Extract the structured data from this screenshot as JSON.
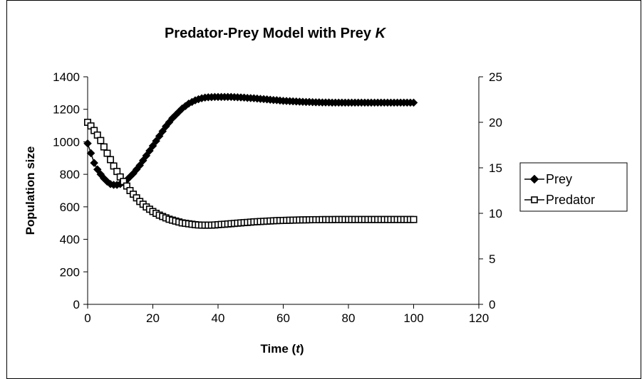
{
  "chart_data": {
    "type": "line",
    "title_main": "Predator-Prey Model with Prey ",
    "title_italic": "K",
    "xlabel_main": "Time (",
    "xlabel_italic": "t",
    "xlabel_end": ")",
    "ylabel": "Population size",
    "xlim": [
      0,
      120
    ],
    "ylim": [
      0,
      1400
    ],
    "y2lim": [
      0,
      25
    ],
    "xticks": [
      0,
      20,
      40,
      60,
      80,
      100,
      120
    ],
    "yticks": [
      0,
      200,
      400,
      600,
      800,
      1000,
      1200,
      1400
    ],
    "y2ticks": [
      0,
      5,
      10,
      15,
      20,
      25
    ],
    "legend_position": "right",
    "grid": false,
    "series": [
      {
        "name": "Prey",
        "axis": "left",
        "marker": "diamond",
        "x": [
          0,
          1,
          2,
          3,
          4,
          5,
          6,
          7,
          8,
          9,
          10,
          11,
          12,
          13,
          14,
          15,
          16,
          17,
          18,
          19,
          20,
          21,
          22,
          23,
          24,
          25,
          26,
          27,
          28,
          29,
          30,
          31,
          32,
          33,
          34,
          35,
          36,
          37,
          38,
          39,
          40,
          41,
          42,
          43,
          44,
          45,
          46,
          47,
          48,
          49,
          50,
          51,
          52,
          53,
          54,
          55,
          56,
          57,
          58,
          59,
          60,
          61,
          62,
          63,
          64,
          65,
          66,
          67,
          68,
          69,
          70,
          71,
          72,
          73,
          74,
          75,
          76,
          77,
          78,
          79,
          80,
          81,
          82,
          83,
          84,
          85,
          86,
          87,
          88,
          89,
          90,
          91,
          92,
          93,
          94,
          95,
          96,
          97,
          98,
          99,
          100
        ],
        "values": [
          990,
          930,
          870,
          830,
          800,
          775,
          755,
          740,
          735,
          735,
          740,
          750,
          765,
          785,
          805,
          830,
          855,
          885,
          915,
          945,
          975,
          1005,
          1035,
          1065,
          1095,
          1120,
          1145,
          1165,
          1185,
          1205,
          1220,
          1235,
          1245,
          1255,
          1262,
          1268,
          1272,
          1274,
          1275,
          1276,
          1276,
          1276,
          1276,
          1276,
          1276,
          1275,
          1274,
          1273,
          1272,
          1270,
          1269,
          1268,
          1266,
          1264,
          1263,
          1261,
          1259,
          1257,
          1256,
          1254,
          1252,
          1251,
          1250,
          1249,
          1248,
          1247,
          1246,
          1245,
          1245,
          1244,
          1243,
          1243,
          1242,
          1242,
          1242,
          1241,
          1241,
          1241,
          1241,
          1241,
          1241,
          1241,
          1241,
          1241,
          1241,
          1241,
          1241,
          1241,
          1241,
          1241,
          1241,
          1241,
          1241,
          1241,
          1241,
          1241,
          1241,
          1241,
          1241,
          1241,
          1241
        ]
      },
      {
        "name": "Predator",
        "axis": "right",
        "marker": "square",
        "x": [
          0,
          1,
          2,
          3,
          4,
          5,
          6,
          7,
          8,
          9,
          10,
          11,
          12,
          13,
          14,
          15,
          16,
          17,
          18,
          19,
          20,
          21,
          22,
          23,
          24,
          25,
          26,
          27,
          28,
          29,
          30,
          31,
          32,
          33,
          34,
          35,
          36,
          37,
          38,
          39,
          40,
          41,
          42,
          43,
          44,
          45,
          46,
          47,
          48,
          49,
          50,
          51,
          52,
          53,
          54,
          55,
          56,
          57,
          58,
          59,
          60,
          61,
          62,
          63,
          64,
          65,
          66,
          67,
          68,
          69,
          70,
          71,
          72,
          73,
          74,
          75,
          76,
          77,
          78,
          79,
          80,
          81,
          82,
          83,
          84,
          85,
          86,
          87,
          88,
          89,
          90,
          91,
          92,
          93,
          94,
          95,
          96,
          97,
          98,
          99,
          100
        ],
        "values": [
          20,
          19.6,
          19.1,
          18.6,
          18.0,
          17.3,
          16.6,
          15.9,
          15.2,
          14.6,
          14.0,
          13.5,
          13.0,
          12.5,
          12.1,
          11.7,
          11.3,
          11.0,
          10.7,
          10.45,
          10.2,
          10.0,
          9.8,
          9.65,
          9.5,
          9.35,
          9.25,
          9.15,
          9.05,
          8.95,
          8.9,
          8.85,
          8.8,
          8.75,
          8.72,
          8.7,
          8.7,
          8.7,
          8.7,
          8.72,
          8.75,
          8.78,
          8.8,
          8.83,
          8.86,
          8.89,
          8.92,
          8.95,
          8.98,
          9.0,
          9.03,
          9.06,
          9.08,
          9.1,
          9.12,
          9.14,
          9.16,
          9.18,
          9.2,
          9.21,
          9.22,
          9.23,
          9.24,
          9.25,
          9.26,
          9.27,
          9.28,
          9.28,
          9.29,
          9.3,
          9.3,
          9.3,
          9.31,
          9.31,
          9.31,
          9.31,
          9.32,
          9.32,
          9.32,
          9.32,
          9.32,
          9.32,
          9.32,
          9.32,
          9.32,
          9.32,
          9.32,
          9.32,
          9.32,
          9.32,
          9.32,
          9.32,
          9.32,
          9.32,
          9.32,
          9.32,
          9.32,
          9.32,
          9.32,
          9.32,
          9.32
        ]
      }
    ]
  }
}
